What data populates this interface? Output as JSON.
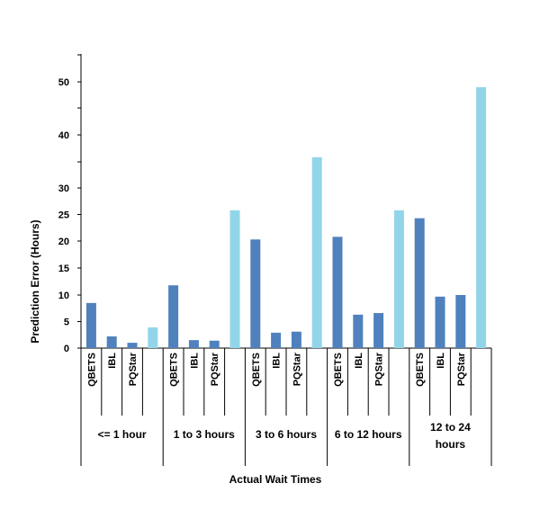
{
  "chart_data": {
    "type": "bar",
    "xlabel": "Actual Wait Times",
    "ylabel": "Prediction Error (Hours)",
    "ylim": [
      0,
      55
    ],
    "yticks": [
      "0",
      "5",
      "10",
      "15",
      "20",
      "25",
      "30",
      "40",
      "50"
    ],
    "grid": false,
    "groups": [
      {
        "label": "<= 1 hour",
        "bars": [
          {
            "label": "QBETS",
            "value": 8.5
          },
          {
            "label": "IBL",
            "value": 2.2
          },
          {
            "label": "PQStar",
            "value": 1.0
          },
          {
            "label": "",
            "value": 3.9
          }
        ]
      },
      {
        "label": "1 to 3 hours",
        "bars": [
          {
            "label": "QBETS",
            "value": 11.8
          },
          {
            "label": "IBL",
            "value": 1.5
          },
          {
            "label": "PQStar",
            "value": 1.4
          },
          {
            "label": "",
            "value": 25.8
          }
        ]
      },
      {
        "label": "3 to 6 hours",
        "bars": [
          {
            "label": "QBETS",
            "value": 20.3
          },
          {
            "label": "IBL",
            "value": 2.9
          },
          {
            "label": "PQStar",
            "value": 3.1
          },
          {
            "label": "",
            "value": 35.8
          }
        ]
      },
      {
        "label": "6 to 12 hours",
        "bars": [
          {
            "label": "QBETS",
            "value": 20.8
          },
          {
            "label": "IBL",
            "value": 6.3
          },
          {
            "label": "PQStar",
            "value": 6.6
          },
          {
            "label": "",
            "value": 25.8
          }
        ]
      },
      {
        "label": "12 to 24 hours",
        "bars": [
          {
            "label": "QBETS",
            "value": 24.3
          },
          {
            "label": "IBL",
            "value": 9.7
          },
          {
            "label": "PQStar",
            "value": 10.0
          },
          {
            "label": "",
            "value": 49.0
          }
        ]
      }
    ],
    "colors": {
      "model_bar": "#4f81bd",
      "fourth_bar": "#93d5e8",
      "axis": "#000000"
    }
  }
}
